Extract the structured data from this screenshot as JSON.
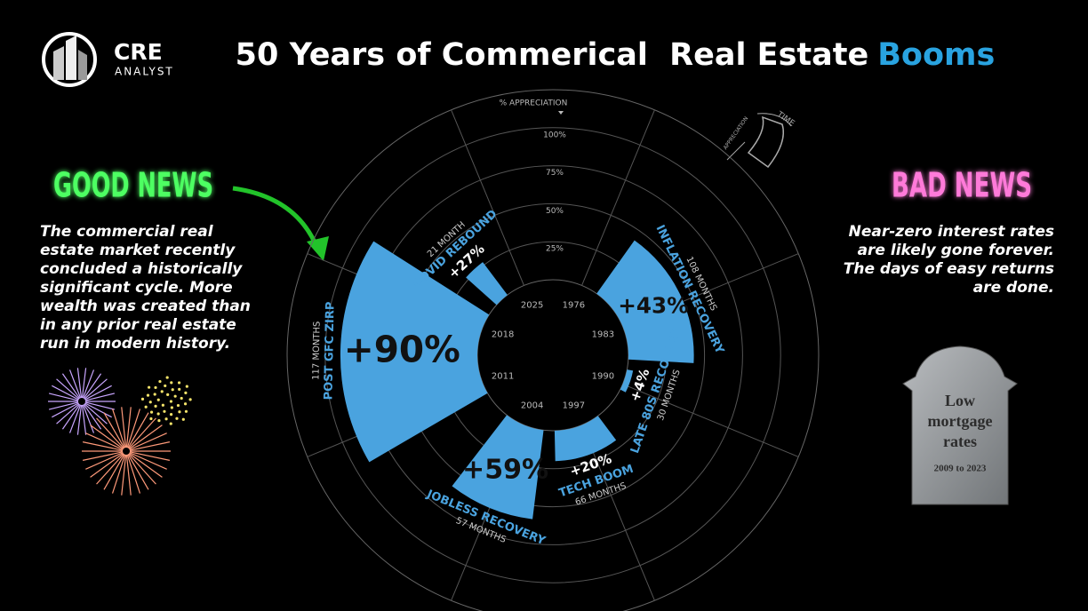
{
  "header": {
    "logo_top": "CRE",
    "logo_bottom": "ANALYST"
  },
  "good_news": {
    "title": "GOOD NEWS",
    "lines": [
      "The commercial real",
      "estate market recently",
      "concluded a historically",
      "significant cycle. More",
      "wealth was created than",
      "in any prior real estate",
      "run in modern history."
    ]
  },
  "bad_news": {
    "title": "BAD NEWS",
    "lines": [
      "Near-zero interest rates",
      "are likely gone forever.",
      "The days of easy returns",
      "are done."
    ]
  },
  "tombstone": {
    "lines": [
      "Low",
      "mortgage",
      "rates"
    ],
    "dates": "2009 to 2023"
  },
  "key": {
    "radial": "APPRECIATION",
    "angular": "TIME"
  },
  "chart_data": {
    "type": "radial_bar",
    "title": "50 Years of Commerical  Real Estate",
    "title_highlight": "Booms",
    "r_label": "% APPRECIATION",
    "rlim": [
      0,
      125
    ],
    "rticks": [
      {
        "value": 25,
        "label": "25%"
      },
      {
        "value": 50,
        "label": "50%"
      },
      {
        "value": 75,
        "label": "75%"
      },
      {
        "value": 100,
        "label": "100%"
      }
    ],
    "thetalim": [
      1972.5,
      2028.5
    ],
    "thetaticks": [
      1976,
      1983,
      1990,
      1997,
      2004,
      2011,
      2018,
      2025
    ],
    "color": "#4aa3df",
    "highlight_color": "#29a3e0",
    "categories": [
      "INFLATION RECOVERY",
      "LATE 80S RECOVERY",
      "TECH BOOM",
      "JOBLESS RECOVERY",
      "POST GFC ZIRP",
      "COVID REBOUND"
    ],
    "starts": [
      1978,
      1988.2,
      1994.8,
      2001.6,
      2009.8,
      2021
    ],
    "months": [
      108,
      30,
      66,
      57,
      117,
      21
    ],
    "months_labels": [
      "108 MONTHS",
      "30 MONTHS",
      "66 MONTHS",
      "57 MONTHS",
      "117 MONTHS",
      "21 MONTH"
    ],
    "values": [
      43,
      4,
      20,
      59,
      90,
      27
    ],
    "value_labels": [
      "+43%",
      "+4%",
      "+20%",
      "+59%",
      "+90%",
      "+27%"
    ]
  }
}
